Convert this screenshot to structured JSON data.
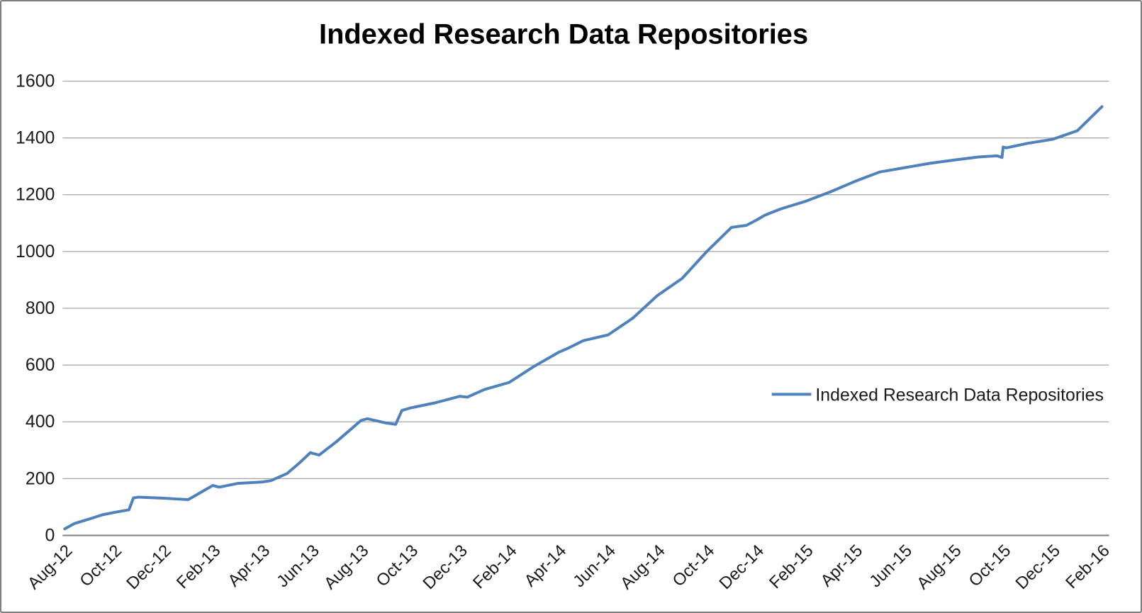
{
  "title": "Indexed Research Data Repositories",
  "legend": {
    "label": "Indexed Research Data Repositories"
  },
  "colors": {
    "line": "#4F81BD",
    "gridline": "#A6A6A6",
    "axis_line": "#7F7F7F",
    "text": "#1a1a1a",
    "title_text": "#000000",
    "border": "#7f7f7f",
    "background": "#ffffff"
  },
  "chart_data": {
    "type": "line",
    "title": "Indexed Research Data Repositories",
    "xlabel": "",
    "ylabel": "",
    "ylim": [
      0,
      1600
    ],
    "y_ticks": [
      0,
      200,
      400,
      600,
      800,
      1000,
      1200,
      1400,
      1600
    ],
    "x_tick_labels": [
      "Aug-12",
      "Oct-12",
      "Dec-12",
      "Feb-13",
      "Apr-13",
      "Jun-13",
      "Aug-13",
      "Oct-13",
      "Dec-13",
      "Feb-14",
      "Apr-14",
      "Jun-14",
      "Aug-14",
      "Oct-14",
      "Dec-14",
      "Feb-15",
      "Apr-15",
      "Jun-15",
      "Aug-15",
      "Oct-15",
      "Dec-15",
      "Feb-16"
    ],
    "grid": true,
    "legend_position": "middle-right",
    "series": [
      {
        "name": "Indexed Research Data Repositories",
        "months": [
          "Aug-12",
          "Sep-12",
          "Oct-12",
          "Nov-12",
          "Dec-12",
          "Jan-13",
          "Feb-13",
          "Mar-13",
          "Apr-13",
          "May-13",
          "Jun-13",
          "Jul-13",
          "Aug-13",
          "Sep-13",
          "Oct-13",
          "Nov-13",
          "Dec-13",
          "Jan-14",
          "Feb-14",
          "Mar-14",
          "Apr-14",
          "May-14",
          "Jun-14",
          "Jul-14",
          "Aug-14",
          "Sep-14",
          "Oct-14",
          "Nov-14",
          "Dec-14",
          "Jan-15",
          "Feb-15",
          "Mar-15",
          "Apr-15",
          "May-15",
          "Jun-15",
          "Jul-15",
          "Aug-15",
          "Sep-15",
          "Oct-15",
          "Nov-15",
          "Dec-15",
          "Jan-16",
          "Feb-16"
        ],
        "values": [
          23,
          58,
          81,
          135,
          131,
          126,
          176,
          183,
          188,
          218,
          290,
          330,
          405,
          396,
          449,
          467,
          490,
          514,
          539,
          595,
          645,
          686,
          706,
          765,
          845,
          905,
          1000,
          1085,
          1110,
          1150,
          1177,
          1210,
          1247,
          1280,
          1295,
          1310,
          1322,
          1333,
          1368,
          1381,
          1395,
          1425,
          1510
        ],
        "extra_vertices": [
          [
            0.4,
            42
          ],
          [
            1.5,
            72
          ],
          [
            2.6,
            90
          ],
          [
            2.78,
            132
          ],
          [
            6.25,
            170
          ],
          [
            8.35,
            193
          ],
          [
            9.5,
            255
          ],
          [
            9.95,
            292
          ],
          [
            10.3,
            283
          ],
          [
            12.25,
            411
          ],
          [
            13.4,
            391
          ],
          [
            13.65,
            440
          ],
          [
            16.3,
            487
          ],
          [
            20.4,
            660
          ],
          [
            27.6,
            1092
          ],
          [
            28.35,
            1128
          ],
          [
            37.75,
            1337
          ],
          [
            37.95,
            1331
          ],
          [
            38.12,
            1365
          ]
        ]
      }
    ]
  }
}
